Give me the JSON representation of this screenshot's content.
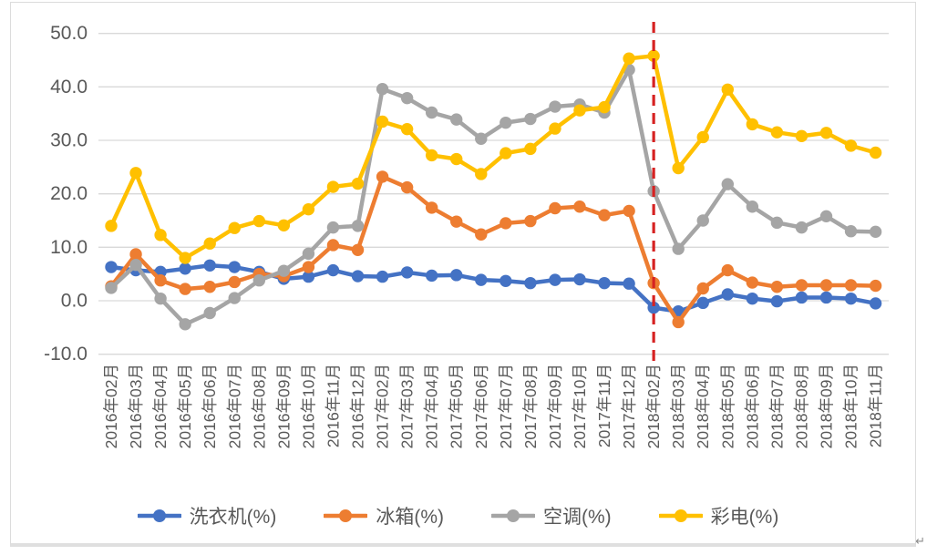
{
  "figure": {
    "background": "#FFFFFF",
    "frame_color": "#DCDCDC",
    "paragraph_mark": "↵"
  },
  "chart_data": {
    "type": "line",
    "title": "",
    "categories": [
      "2016年02月",
      "2016年03月",
      "2016年04月",
      "2016年05月",
      "2016年06月",
      "2016年07月",
      "2016年08月",
      "2016年09月",
      "2016年10月",
      "2016年11月",
      "2016年12月",
      "2017年02月",
      "2017年03月",
      "2017年04月",
      "2017年05月",
      "2017年06月",
      "2017年07月",
      "2017年08月",
      "2017年09月",
      "2017年10月",
      "2017年11月",
      "2017年12月",
      "2018年02月",
      "2018年03月",
      "2018年04月",
      "2018年05月",
      "2018年06月",
      "2018年07月",
      "2018年08月",
      "2018年09月",
      "2018年10月",
      "2018年11月"
    ],
    "series": [
      {
        "name": "洗衣机(%)",
        "color": "#4472C4",
        "values": [
          6.3,
          5.7,
          5.4,
          6.0,
          6.6,
          6.3,
          5.4,
          4.1,
          4.5,
          5.7,
          4.6,
          4.5,
          5.3,
          4.7,
          4.8,
          3.9,
          3.7,
          3.3,
          3.9,
          4.0,
          3.3,
          3.2,
          -1.3,
          -2.0,
          -0.4,
          1.2,
          0.4,
          -0.1,
          0.6,
          0.6,
          0.4,
          -0.5
        ]
      },
      {
        "name": "冰箱(%)",
        "color": "#ED7D31",
        "values": [
          2.7,
          8.7,
          3.8,
          2.2,
          2.6,
          3.5,
          5.0,
          4.6,
          6.3,
          10.4,
          9.5,
          23.2,
          21.2,
          17.4,
          14.8,
          12.4,
          14.5,
          14.9,
          17.3,
          17.6,
          16.0,
          16.8,
          3.3,
          -4.0,
          2.3,
          5.7,
          3.4,
          2.6,
          2.9,
          2.9,
          2.9,
          2.8
        ]
      },
      {
        "name": "空调(%)",
        "color": "#A5A5A5",
        "values": [
          2.4,
          6.7,
          0.4,
          -4.4,
          -2.3,
          0.5,
          3.8,
          5.6,
          8.8,
          13.7,
          14.0,
          39.6,
          37.9,
          35.2,
          33.9,
          30.3,
          33.3,
          34.0,
          36.3,
          36.7,
          35.2,
          43.2,
          20.5,
          9.7,
          15.0,
          21.8,
          17.6,
          14.6,
          13.7,
          15.8,
          13.0,
          12.9
        ]
      },
      {
        "name": "彩电(%)",
        "color": "#FFC000",
        "values": [
          14.0,
          23.9,
          12.3,
          8.0,
          10.7,
          13.6,
          14.9,
          14.1,
          17.1,
          21.3,
          21.9,
          33.5,
          32.1,
          27.2,
          26.5,
          23.7,
          27.6,
          28.4,
          32.2,
          35.6,
          36.2,
          45.3,
          45.8,
          24.8,
          30.6,
          39.5,
          33.0,
          31.5,
          30.8,
          31.4,
          29.0,
          27.7
        ]
      }
    ],
    "ylim": [
      -10,
      50
    ],
    "ytick_step": 10,
    "ytick_labels": [
      "-10.0",
      "0.0",
      "10.0",
      "20.0",
      "30.0",
      "40.0",
      "50.0"
    ],
    "grid": true,
    "gridline_color": "#D9D9D9",
    "axis_text_color": "#595959",
    "legend_position": "bottom",
    "reference_line": {
      "category": "2018年02月",
      "color": "#D62222",
      "style": "dashed"
    }
  }
}
